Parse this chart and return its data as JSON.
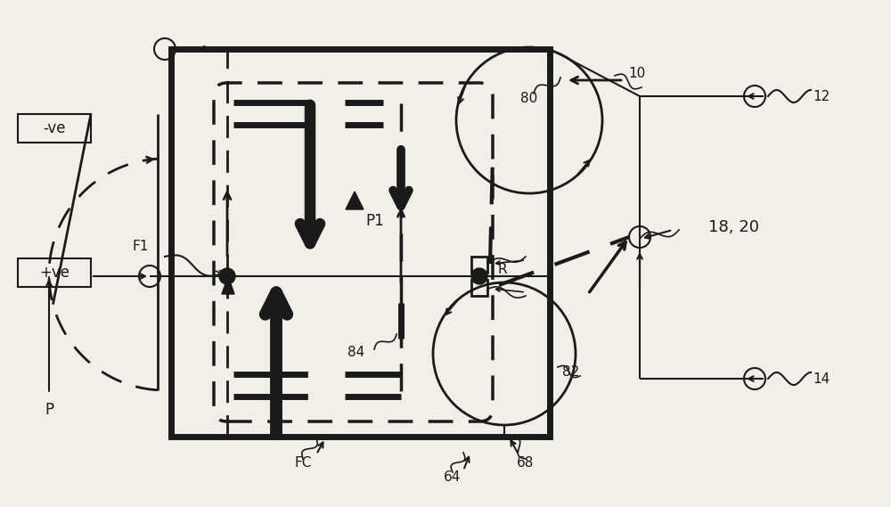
{
  "bg_color": "#f2efe9",
  "dc": "#1a1a1a",
  "figsize": [
    10.0,
    5.69
  ],
  "dpi": 100,
  "labels": {
    "neg_ve": "-ve",
    "pos_ve": "+ve",
    "P": "P",
    "F1": "F1",
    "P1": "P1",
    "R": "R",
    "n80": "80",
    "n82": "82",
    "n84": "84",
    "n68": "68",
    "n64": "64",
    "FC": "FC",
    "n10": "10",
    "n12": "12",
    "n14": "14",
    "n18_20": "18, 20"
  }
}
